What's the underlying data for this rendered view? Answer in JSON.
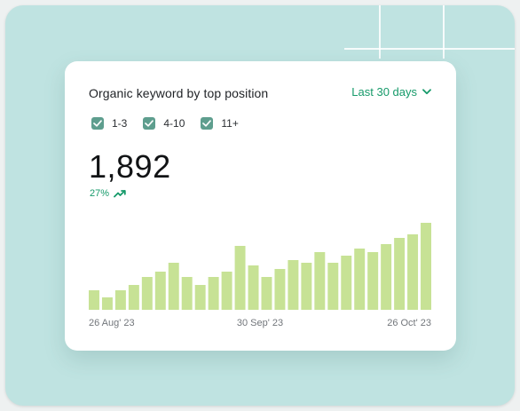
{
  "card": {
    "title": "Organic keyword by top position",
    "date_range": "Last 30 days",
    "filters": [
      {
        "label": "1-3",
        "checked": true
      },
      {
        "label": "4-10",
        "checked": true
      },
      {
        "label": "11+",
        "checked": true
      }
    ],
    "total": "1,892",
    "change": "27%",
    "x_labels": [
      "26 Aug' 23",
      "30 Sep' 23",
      "26 Oct' 23"
    ]
  },
  "colors": {
    "accent": "#169a6a",
    "checkbox": "#5e9e8e",
    "bar": "#c7e295",
    "background": "#bfe3e1"
  },
  "icons": [
    "chevron-down-icon",
    "checkmark-icon",
    "trend-up-icon"
  ],
  "chart_data": {
    "type": "bar",
    "values": [
      22,
      14,
      22,
      28,
      37,
      43,
      53,
      37,
      28,
      37,
      43,
      72,
      50,
      37,
      46,
      56,
      53,
      65,
      53,
      61,
      69,
      65,
      74,
      81,
      85,
      98
    ],
    "x_tick_labels": [
      "26 Aug' 23",
      "30 Sep' 23",
      "26 Oct' 23"
    ],
    "ylim": [
      0,
      110
    ],
    "grid": false
  }
}
